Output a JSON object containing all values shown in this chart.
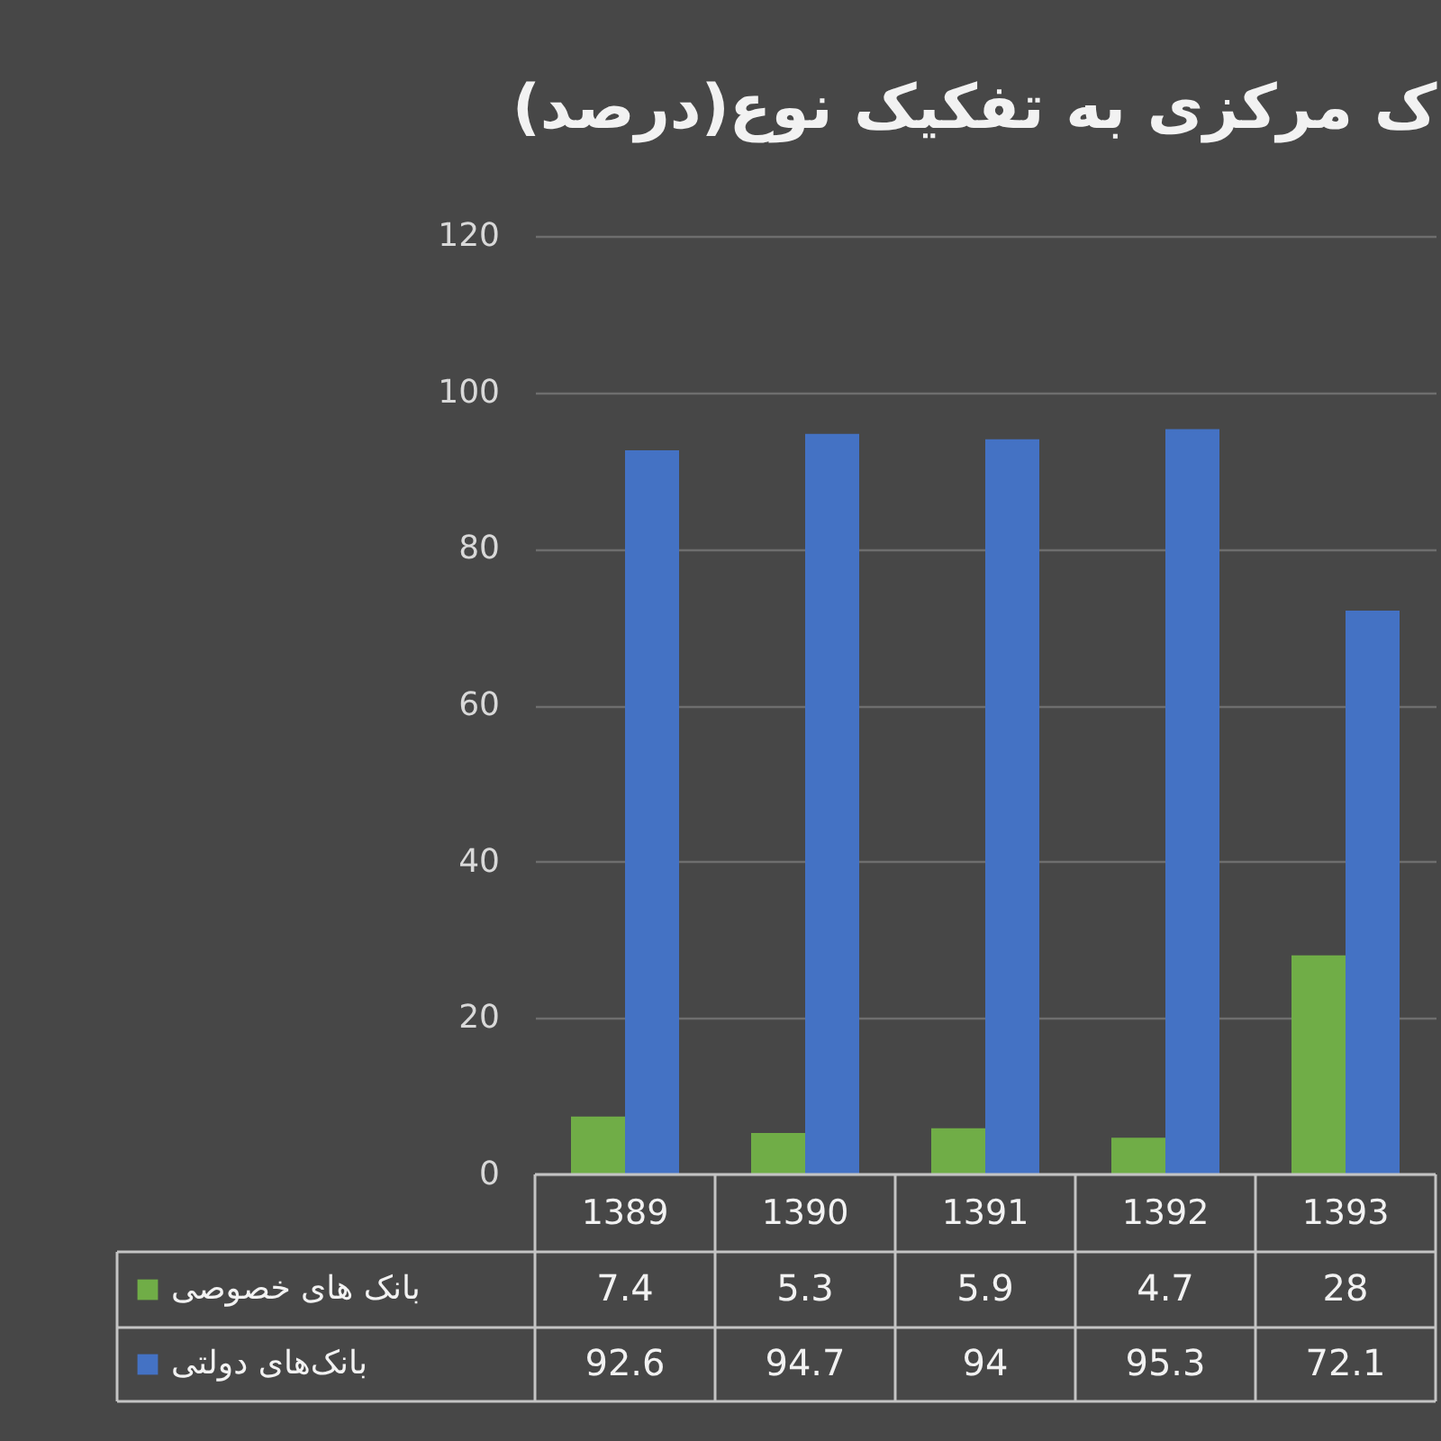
{
  "chart_data": {
    "type": "bar",
    "title": "ک مرکزی به تفکیک نوع(درصد)",
    "categories": [
      "1389",
      "1390",
      "1391",
      "1392",
      "1393"
    ],
    "series": [
      {
        "name": "بانک های خصوصی",
        "color": "#70ad47",
        "values": [
          7.4,
          5.3,
          5.9,
          4.7,
          28
        ]
      },
      {
        "name": "بانک‌های دولتی",
        "color": "#4472c4",
        "values": [
          92.6,
          94.7,
          94,
          95.3,
          72.1
        ]
      }
    ],
    "ylim": [
      0,
      120
    ],
    "yticks": [
      0,
      20,
      40,
      60,
      80,
      100,
      120
    ],
    "grid": "y",
    "legend": "bottom",
    "data_labels": true
  }
}
